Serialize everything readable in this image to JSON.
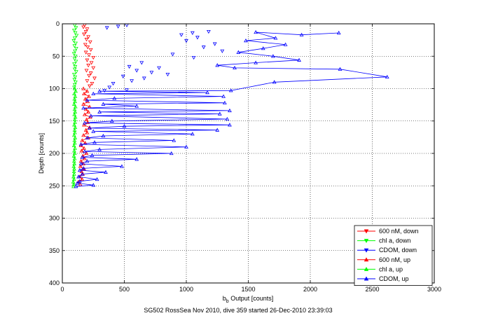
{
  "chart_data": {
    "type": "scatter",
    "title": "",
    "caption": "SG502 RossSea Nov 2010, dive 359 started 26-Dec-2010 23:39:03",
    "xlabel": "b_b Output [counts]",
    "xlabel_main": "b",
    "xlabel_sub": "b",
    "xlabel_rest": " Output [counts]",
    "ylabel": "Depth [counts]",
    "xlim": [
      0,
      3000
    ],
    "ylim": [
      0,
      400
    ],
    "y_reversed": true,
    "grid": true,
    "legend_position": "bottom-right",
    "x_ticks": [
      "0",
      "500",
      "1000",
      "1500",
      "2000",
      "2500",
      "3000"
    ],
    "y_ticks": [
      "0",
      "50",
      "100",
      "150",
      "200",
      "250",
      "300",
      "350",
      "400"
    ],
    "series": [
      {
        "name": "600 nM, down",
        "color": "#ff0000",
        "marker": "triangle-down",
        "line": false,
        "points": [
          [
            180,
            2
          ],
          [
            170,
            5
          ],
          [
            200,
            8
          ],
          [
            190,
            12
          ],
          [
            175,
            16
          ],
          [
            210,
            20
          ],
          [
            195,
            24
          ],
          [
            225,
            28
          ],
          [
            185,
            32
          ],
          [
            205,
            36
          ],
          [
            230,
            40
          ],
          [
            190,
            44
          ],
          [
            215,
            48
          ],
          [
            250,
            52
          ],
          [
            200,
            56
          ],
          [
            235,
            60
          ],
          [
            210,
            64
          ],
          [
            250,
            68
          ],
          [
            195,
            72
          ],
          [
            230,
            76
          ],
          [
            215,
            80
          ],
          [
            260,
            84
          ],
          [
            200,
            88
          ],
          [
            240,
            92
          ],
          [
            220,
            96
          ]
        ]
      },
      {
        "name": "chl a, down",
        "color": "#00ff00",
        "marker": "triangle-down",
        "line": false,
        "points": [
          [
            100,
            2
          ],
          [
            110,
            6
          ],
          [
            95,
            10
          ],
          [
            105,
            14
          ],
          [
            115,
            18
          ],
          [
            100,
            22
          ],
          [
            92,
            26
          ],
          [
            108,
            30
          ],
          [
            98,
            34
          ],
          [
            112,
            38
          ],
          [
            102,
            42
          ],
          [
            94,
            46
          ],
          [
            106,
            50
          ],
          [
            99,
            54
          ],
          [
            110,
            58
          ],
          [
            96,
            62
          ],
          [
            104,
            66
          ],
          [
            100,
            70
          ],
          [
            112,
            74
          ],
          [
            95,
            78
          ],
          [
            103,
            82
          ],
          [
            98,
            86
          ],
          [
            107,
            90
          ],
          [
            100,
            94
          ],
          [
            96,
            98
          ]
        ]
      },
      {
        "name": "CDOM, down",
        "color": "#0000ff",
        "marker": "triangle-down",
        "line": false,
        "points": [
          [
            520,
            2
          ],
          [
            450,
            4
          ],
          [
            360,
            6
          ],
          [
            1180,
            12
          ],
          [
            1050,
            14
          ],
          [
            960,
            17
          ],
          [
            1090,
            21
          ],
          [
            1000,
            26
          ],
          [
            1230,
            31
          ],
          [
            1140,
            36
          ],
          [
            1290,
            42
          ],
          [
            890,
            47
          ],
          [
            1060,
            52
          ],
          [
            640,
            60
          ],
          [
            540,
            66
          ],
          [
            780,
            68
          ],
          [
            600,
            72
          ],
          [
            720,
            75
          ],
          [
            850,
            78
          ],
          [
            490,
            81
          ],
          [
            660,
            84
          ],
          [
            560,
            88
          ],
          [
            410,
            92
          ],
          [
            380,
            98
          ],
          [
            520,
            102
          ],
          [
            340,
            103
          ]
        ]
      },
      {
        "name": "600 nM, up",
        "color": "#ff0000",
        "marker": "triangle-up",
        "line": true,
        "points": [
          [
            170,
            100
          ],
          [
            200,
            104
          ],
          [
            175,
            108
          ],
          [
            215,
            112
          ],
          [
            185,
            116
          ],
          [
            205,
            120
          ],
          [
            170,
            124
          ],
          [
            220,
            128
          ],
          [
            190,
            132
          ],
          [
            210,
            136
          ],
          [
            180,
            140
          ],
          [
            225,
            144
          ],
          [
            195,
            148
          ],
          [
            205,
            152
          ],
          [
            175,
            156
          ],
          [
            220,
            160
          ],
          [
            190,
            164
          ],
          [
            200,
            168
          ],
          [
            170,
            172
          ],
          [
            210,
            176
          ],
          [
            160,
            180
          ],
          [
            185,
            184
          ],
          [
            150,
            188
          ],
          [
            175,
            192
          ],
          [
            155,
            196
          ],
          [
            195,
            200
          ],
          [
            165,
            204
          ],
          [
            180,
            208
          ],
          [
            150,
            212
          ],
          [
            170,
            216
          ],
          [
            145,
            220
          ],
          [
            175,
            224
          ],
          [
            155,
            228
          ],
          [
            165,
            232
          ],
          [
            140,
            236
          ],
          [
            160,
            240
          ],
          [
            130,
            244
          ],
          [
            145,
            248
          ]
        ]
      },
      {
        "name": "chl a, up",
        "color": "#00ff00",
        "marker": "triangle-up",
        "line": true,
        "points": [
          [
            100,
            100
          ],
          [
            108,
            104
          ],
          [
            96,
            108
          ],
          [
            104,
            112
          ],
          [
            98,
            116
          ],
          [
            102,
            120
          ],
          [
            95,
            124
          ],
          [
            106,
            128
          ],
          [
            99,
            132
          ],
          [
            103,
            136
          ],
          [
            97,
            140
          ],
          [
            105,
            144
          ],
          [
            100,
            148
          ],
          [
            102,
            152
          ],
          [
            96,
            156
          ],
          [
            104,
            160
          ],
          [
            99,
            164
          ],
          [
            101,
            168
          ],
          [
            95,
            172
          ],
          [
            103,
            176
          ],
          [
            98,
            180
          ],
          [
            100,
            184
          ],
          [
            94,
            188
          ],
          [
            102,
            192
          ],
          [
            96,
            196
          ],
          [
            100,
            200
          ],
          [
            93,
            204
          ],
          [
            99,
            208
          ],
          [
            95,
            212
          ],
          [
            97,
            216
          ],
          [
            92,
            220
          ],
          [
            96,
            224
          ],
          [
            94,
            228
          ],
          [
            95,
            232
          ],
          [
            90,
            236
          ],
          [
            94,
            240
          ],
          [
            88,
            244
          ],
          [
            92,
            248
          ],
          [
            90,
            251
          ]
        ]
      },
      {
        "name": "CDOM, up",
        "color": "#0000ff",
        "marker": "triangle-up",
        "line": true,
        "points": [
          [
            2230,
            14
          ],
          [
            1930,
            17
          ],
          [
            1560,
            13
          ],
          [
            1720,
            22
          ],
          [
            1480,
            26
          ],
          [
            1800,
            32
          ],
          [
            1620,
            38
          ],
          [
            1420,
            44
          ],
          [
            1700,
            50
          ],
          [
            1910,
            56
          ],
          [
            1560,
            60
          ],
          [
            1250,
            64
          ],
          [
            1390,
            68
          ],
          [
            2240,
            70
          ],
          [
            2620,
            82
          ],
          [
            1710,
            90
          ],
          [
            1360,
            103
          ],
          [
            300,
            104
          ],
          [
            1170,
            106
          ],
          [
            250,
            108
          ],
          [
            1300,
            112
          ],
          [
            420,
            115
          ],
          [
            200,
            118
          ],
          [
            1310,
            122
          ],
          [
            330,
            124
          ],
          [
            600,
            127
          ],
          [
            170,
            130
          ],
          [
            1350,
            134
          ],
          [
            300,
            136
          ],
          [
            1270,
            139
          ],
          [
            230,
            142
          ],
          [
            1330,
            147
          ],
          [
            400,
            150
          ],
          [
            180,
            153
          ],
          [
            1350,
            156
          ],
          [
            500,
            158
          ],
          [
            220,
            161
          ],
          [
            1250,
            164
          ],
          [
            250,
            166
          ],
          [
            1050,
            170
          ],
          [
            330,
            173
          ],
          [
            200,
            176
          ],
          [
            900,
            180
          ],
          [
            260,
            183
          ],
          [
            150,
            186
          ],
          [
            1000,
            190
          ],
          [
            300,
            194
          ],
          [
            180,
            197
          ],
          [
            880,
            200
          ],
          [
            240,
            203
          ],
          [
            160,
            206
          ],
          [
            600,
            209
          ],
          [
            200,
            212
          ],
          [
            150,
            216
          ],
          [
            480,
            220
          ],
          [
            170,
            223
          ],
          [
            140,
            226
          ],
          [
            350,
            229
          ],
          [
            160,
            232
          ],
          [
            130,
            236
          ],
          [
            280,
            240
          ],
          [
            140,
            243
          ],
          [
            120,
            246
          ],
          [
            250,
            249
          ],
          [
            110,
            251
          ]
        ]
      }
    ]
  }
}
